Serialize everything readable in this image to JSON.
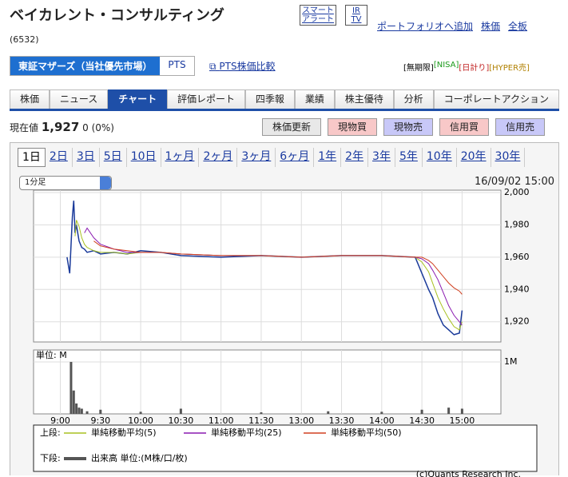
{
  "header": {
    "title": "ベイカレント・コンサルティング",
    "code": "(6532)",
    "alert": [
      "スマート",
      "アラート"
    ],
    "ir": [
      "IR",
      "TV"
    ],
    "links": [
      "ポートフォリオへ追加",
      "株価",
      "全板"
    ]
  },
  "market": {
    "tabs": [
      "東証マザーズ（当社優先市場）",
      "PTS"
    ],
    "pts_link": "PTS株価比較",
    "badges": [
      "[無期限]",
      "[NISA]",
      "[日計り]",
      "[HYPER売]"
    ]
  },
  "nav": {
    "items": [
      "株価",
      "ニュース",
      "チャート",
      "評価レポート",
      "四季報",
      "業績",
      "株主優待",
      "分析",
      "コーポレートアクション"
    ],
    "active": 2
  },
  "quote": {
    "label": "現在値",
    "price": "1,927",
    "change": "0 (0%)",
    "buttons": [
      "株価更新",
      "現物買",
      "現物売",
      "信用買",
      "信用売"
    ]
  },
  "periods": {
    "items": [
      "1日",
      "2日",
      "3日",
      "5日",
      "10日",
      "1ヶ月",
      "2ヶ月",
      "3ヶ月",
      "6ヶ月",
      "1年",
      "2年",
      "3年",
      "5年",
      "10年",
      "20年",
      "30年"
    ],
    "active": 0
  },
  "interval": "1分足",
  "timestamp": "16/09/02 15:00",
  "chart_data": [
    {
      "type": "line",
      "legend_label": "上段:",
      "x": [
        5,
        7,
        9,
        10,
        11,
        12,
        14,
        16,
        18,
        20,
        25,
        30,
        40,
        50,
        60,
        75,
        90,
        120,
        150,
        180,
        210,
        240,
        265,
        270,
        275,
        278,
        282,
        286,
        290,
        294,
        298,
        300
      ],
      "xlim": [
        -20,
        329
      ],
      "xticks": [
        {
          "value": 0,
          "label": "9:00"
        },
        {
          "value": 30,
          "label": "9:30"
        },
        {
          "value": 60,
          "label": "10:00"
        },
        {
          "value": 90,
          "label": "10:30"
        },
        {
          "value": 120,
          "label": "11:00"
        },
        {
          "value": 150,
          "label": "11:30"
        },
        {
          "value": 180,
          "label": "13:00"
        },
        {
          "value": 210,
          "label": "13:30"
        },
        {
          "value": 240,
          "label": "14:00"
        },
        {
          "value": 270,
          "label": "14:30"
        },
        {
          "value": 300,
          "label": "15:00"
        }
      ],
      "ylim": [
        1907.5,
        2001.5
      ],
      "yticks": [
        {
          "value": 1920,
          "label": "1,920"
        },
        {
          "value": 1940,
          "label": "1,940"
        },
        {
          "value": 1960,
          "label": "1,960"
        },
        {
          "value": 1980,
          "label": "1,980"
        },
        {
          "value": 2000,
          "label": "2,000"
        }
      ],
      "series": [
        {
          "color": "#1a3a9a",
          "values": [
            1960,
            1950,
            1985,
            1995,
            1975,
            1980,
            1970,
            1966,
            1965,
            1963,
            1964,
            1962,
            1963,
            1962,
            1964,
            1963,
            1961,
            1960,
            1961,
            1960,
            1961,
            1961,
            1960,
            1950,
            1940,
            1935,
            1925,
            1918,
            1915,
            1912,
            1913,
            1927
          ]
        },
        {
          "name": "単純移動平均(5)",
          "color": "#a8c020",
          "values": [
            null,
            null,
            null,
            null,
            1973,
            1983,
            1979,
            1972,
            1968,
            1966,
            1964,
            1963,
            1963,
            1962,
            1963,
            1963,
            1962,
            1961,
            1961,
            1960,
            1961,
            1961,
            1960,
            1957,
            1951,
            1944,
            1935,
            1928,
            1922,
            1917,
            1915,
            1920
          ]
        },
        {
          "name": "単純移動平均(25)",
          "color": "#8a1ab0",
          "values": [
            null,
            null,
            null,
            null,
            null,
            null,
            null,
            null,
            1975,
            1978,
            1972,
            1968,
            1965,
            1963,
            1963,
            1963,
            1962,
            1961,
            1961,
            1960,
            1961,
            1961,
            1960,
            1959,
            1956,
            1952,
            1946,
            1938,
            1930,
            1924,
            1920,
            1918
          ]
        },
        {
          "name": "単純移動平均(50)",
          "color": "#d04020",
          "values": [
            null,
            null,
            null,
            null,
            null,
            null,
            null,
            null,
            null,
            null,
            1970,
            1967,
            1965,
            1964,
            1963,
            1963,
            1962,
            1961,
            1961,
            1960,
            1961,
            1961,
            1960,
            1960,
            1958,
            1956,
            1952,
            1948,
            1944,
            1941,
            1939,
            1937
          ]
        }
      ]
    },
    {
      "type": "bar",
      "legend_label": "下段:",
      "ylabel": "単位: M",
      "x": [
        8,
        10,
        12,
        14,
        16,
        20,
        30,
        60,
        90,
        150,
        200,
        240,
        270,
        290,
        300
      ],
      "xlim": [
        -20,
        329
      ],
      "ylim": [
        0,
        1.23
      ],
      "yticks": [
        {
          "value": 1,
          "label": "1M"
        }
      ],
      "series": [
        {
          "name": "出来高 単位:(M株/口/枚)",
          "color": "#555555",
          "values": [
            1.0,
            0.45,
            0.2,
            0.12,
            0.1,
            0.05,
            0.08,
            0.04,
            0.1,
            0.03,
            0.05,
            0.04,
            0.08,
            0.12,
            0.1
          ]
        }
      ]
    }
  ],
  "copyright": "(c)Quants Research Inc."
}
